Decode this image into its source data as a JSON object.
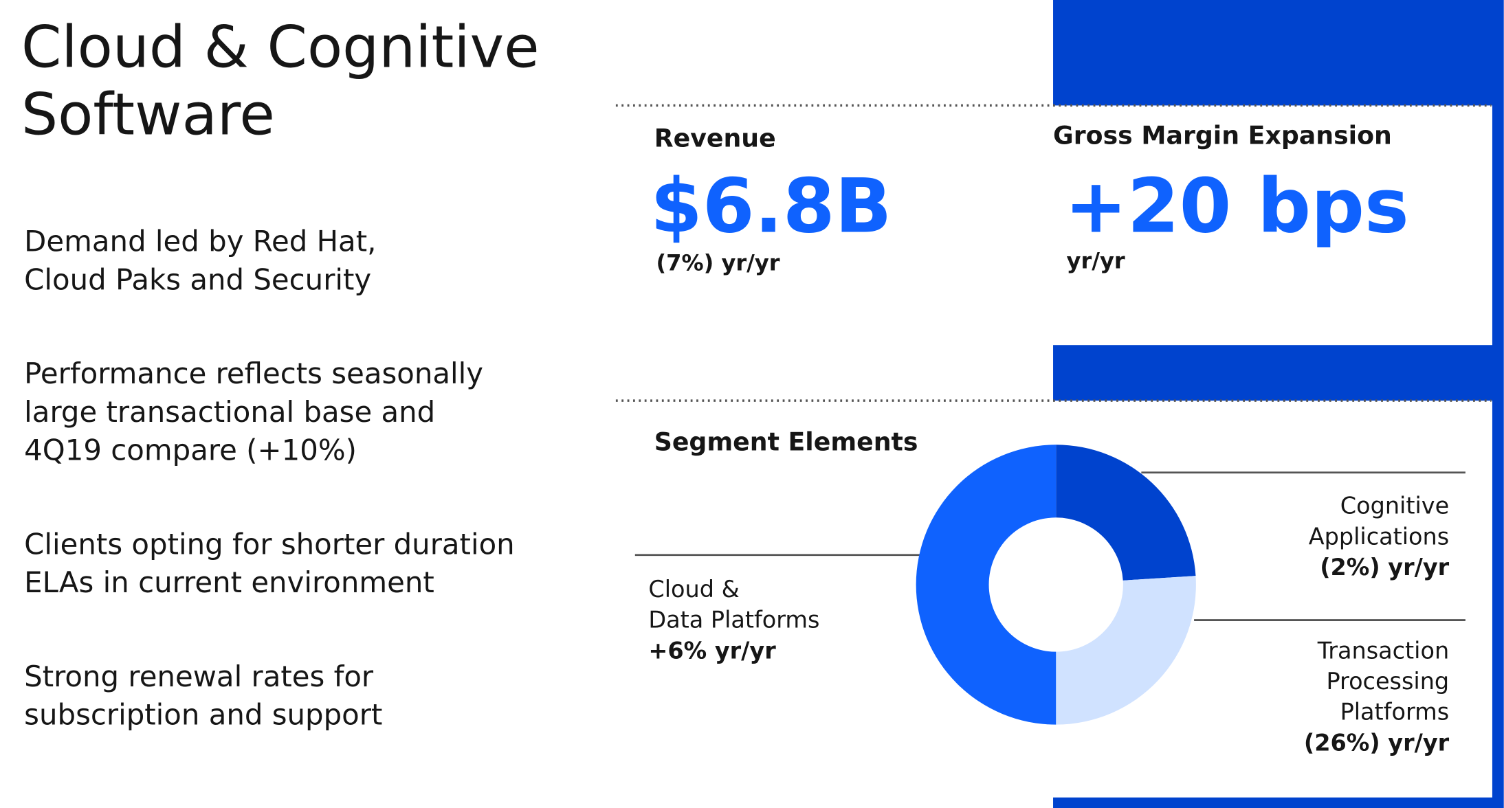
{
  "title_lines": [
    "Cloud & Cognitive",
    "Software"
  ],
  "bullets": [
    [
      "Demand led by Red Hat,",
      "Cloud Paks and Security"
    ],
    [
      "Performance reflects seasonally",
      "large transactional base and",
      "4Q19 compare (+10%)"
    ],
    [
      "Clients opting for shorter duration",
      "ELAs in current environment"
    ],
    [
      "Strong renewal rates for",
      "subscription and support"
    ]
  ],
  "metrics": [
    {
      "label": "Revenue",
      "value": "$6.8B",
      "change": "(7%) yr/yr"
    },
    {
      "label": "Gross Margin Expansion",
      "value": "+20 bps",
      "change": "yr/yr"
    }
  ],
  "segments": {
    "title": "Segment Elements",
    "slices": [
      {
        "lines": [
          "Cognitive",
          "Applications"
        ],
        "change": "(2%) yr/yr",
        "share": 24,
        "color": "#0043ce"
      },
      {
        "lines": [
          "Transaction",
          "Processing",
          "Platforms"
        ],
        "change": "(26%) yr/yr",
        "share": 26,
        "color": "#d0e2ff"
      },
      {
        "lines": [
          "Cloud &",
          "Data Platforms"
        ],
        "change": "+6% yr/yr",
        "share": 50,
        "color": "#0f62fe"
      }
    ]
  }
}
